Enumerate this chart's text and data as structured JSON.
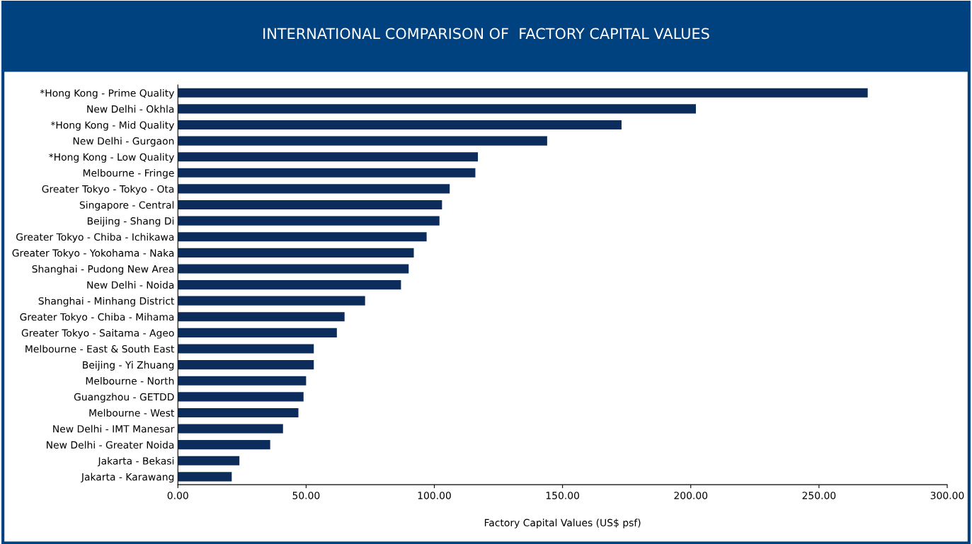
{
  "chart_data": {
    "type": "bar",
    "orientation": "horizontal",
    "title": "INTERNATIONAL COMPARISON OF  FACTORY CAPITAL VALUES",
    "xlabel": "Factory Capital Values (US$ psf)",
    "categories": [
      "*Hong Kong - Prime Quality",
      "New Delhi - Okhla",
      "*Hong Kong - Mid Quality",
      "New Delhi - Gurgaon",
      "*Hong Kong - Low Quality",
      "Melbourne - Fringe",
      "Greater Tokyo - Tokyo - Ota",
      "Singapore - Central",
      "Beijing - Shang Di",
      "Greater Tokyo - Chiba - Ichikawa",
      "Greater Tokyo - Yokohama - Naka",
      "Shanghai - Pudong New Area",
      "New Delhi - Noida",
      "Shanghai - Minhang District",
      "Greater Tokyo - Chiba - Mihama",
      "Greater Tokyo - Saitama - Ageo",
      "Melbourne - East & South East",
      "Beijing - Yi Zhuang",
      "Melbourne - North",
      "Guangzhou - GETDD",
      "Melbourne - West",
      "New Delhi - IMT Manesar",
      "New Delhi - Greater Noida",
      "Jakarta - Bekasi",
      "Jakarta - Karawang"
    ],
    "values": [
      269,
      202,
      173,
      144,
      117,
      116,
      106,
      103,
      102,
      97,
      92,
      90,
      87,
      73,
      65,
      62,
      53,
      53,
      50,
      49,
      47,
      41,
      36,
      24,
      21
    ],
    "color": "#0c2d5b",
    "xlim": [
      0,
      300
    ],
    "xticks": [
      {
        "value": 0,
        "label": "0.00"
      },
      {
        "value": 50,
        "label": "50.00"
      },
      {
        "value": 100,
        "label": "100.00"
      },
      {
        "value": 150,
        "label": "150.00"
      },
      {
        "value": 200,
        "label": "200.00"
      },
      {
        "value": 250,
        "label": "250.00"
      },
      {
        "value": 300,
        "label": "300.00"
      }
    ],
    "grid": false,
    "legend": false
  }
}
